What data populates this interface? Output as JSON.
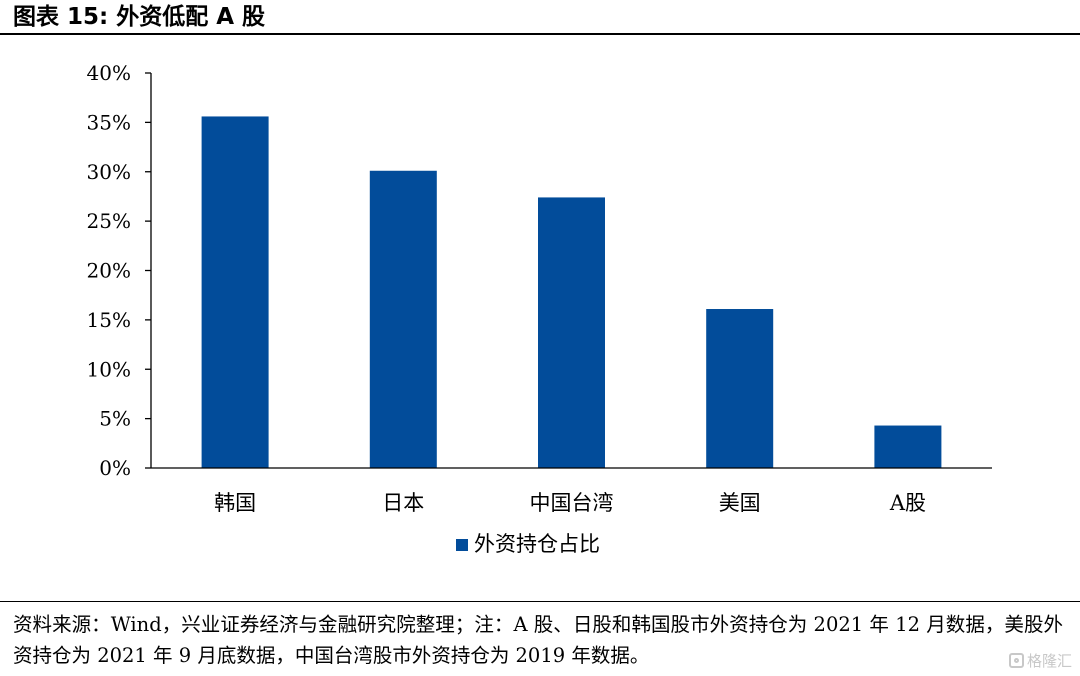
{
  "figure": {
    "title": "图表 15:  外资低配 A 股",
    "source_note": "资料来源：Wind，兴业证券经济与金融研究院整理；注：A 股、日股和韩国股市外资持仓为 2021 年 12 月数据，美股外资持仓为 2021 年 9 月底数据，中国台湾股市外资持仓为 2019 年数据。",
    "watermark": "格隆汇"
  },
  "colors": {
    "bar": "#024C9A",
    "axis": "#000000"
  },
  "chart_data": {
    "type": "bar",
    "title": "",
    "xlabel": "",
    "ylabel": "",
    "categories": [
      "韩国",
      "日本",
      "中国台湾",
      "美国",
      "A股"
    ],
    "series": [
      {
        "name": "外资持仓占比",
        "values": [
          35.6,
          30.1,
          27.4,
          16.1,
          4.3
        ]
      }
    ],
    "ylim": [
      0,
      40
    ],
    "yticks": [
      0,
      5,
      10,
      15,
      20,
      25,
      30,
      35,
      40
    ],
    "ytick_labels": [
      "0%",
      "5%",
      "10%",
      "15%",
      "20%",
      "25%",
      "30%",
      "35%",
      "40%"
    ],
    "grid": false,
    "legend": "bottom-center"
  }
}
